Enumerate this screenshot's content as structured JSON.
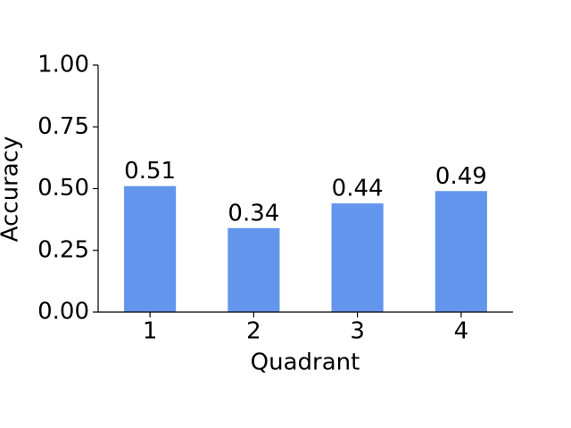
{
  "chart_data": {
    "type": "bar",
    "x_label": "Quadrant",
    "y_label": "Accuracy",
    "categories": [
      "1",
      "2",
      "3",
      "4"
    ],
    "values": [
      0.51,
      0.34,
      0.44,
      0.49
    ],
    "color": "#6495ed",
    "ylim": [
      0,
      1
    ],
    "yticks": [
      {
        "value": 0,
        "label": "0.00"
      },
      {
        "value": 0.25,
        "label": "0.25"
      },
      {
        "value": 0.5,
        "label": "0.50"
      },
      {
        "value": 0.75,
        "label": "0.75"
      },
      {
        "value": 1,
        "label": "1.00"
      }
    ]
  }
}
